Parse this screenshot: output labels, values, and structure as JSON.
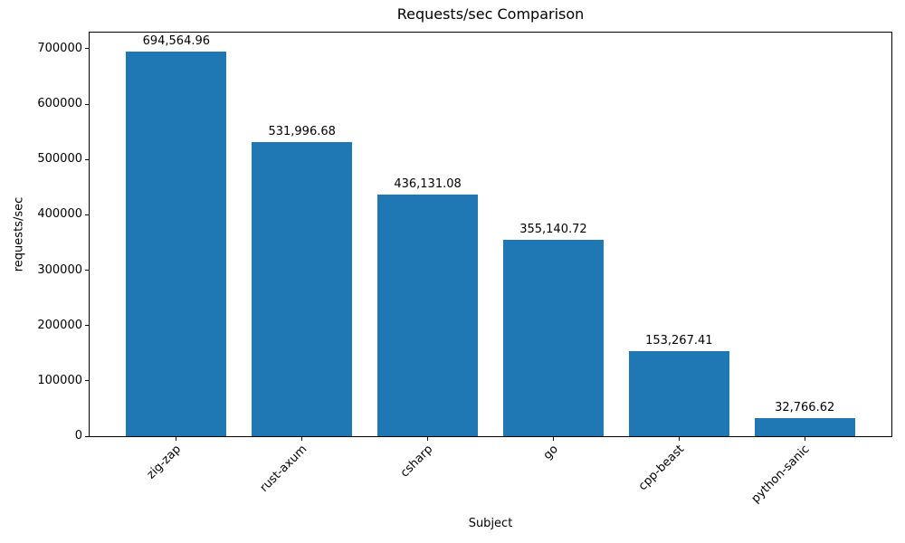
{
  "chart_data": {
    "type": "bar",
    "title": "Requests/sec Comparison",
    "xlabel": "Subject",
    "ylabel": "requests/sec",
    "categories": [
      "zig-zap",
      "rust-axum",
      "csharp",
      "go",
      "cpp-beast",
      "python-sanic"
    ],
    "values": [
      694564.96,
      531996.68,
      436131.08,
      355140.72,
      153267.41,
      32766.62
    ],
    "bar_labels": [
      "694,564.96",
      "531,996.68",
      "436,131.08",
      "355,140.72",
      "153,267.41",
      "32,766.62"
    ],
    "bar_color": "#1f77b4",
    "ylim": [
      0,
      729293
    ],
    "yticks": [
      0,
      100000,
      200000,
      300000,
      400000,
      500000,
      600000,
      700000
    ],
    "ytick_labels": [
      "0",
      "100000",
      "200000",
      "300000",
      "400000",
      "500000",
      "600000",
      "700000"
    ],
    "xlim": [
      -0.69,
      5.69
    ],
    "bar_width_ratio": 0.8,
    "x_tick_rotation_deg": 45,
    "grid": false,
    "legend": "none",
    "text_color": "#000000",
    "background": "#ffffff"
  }
}
